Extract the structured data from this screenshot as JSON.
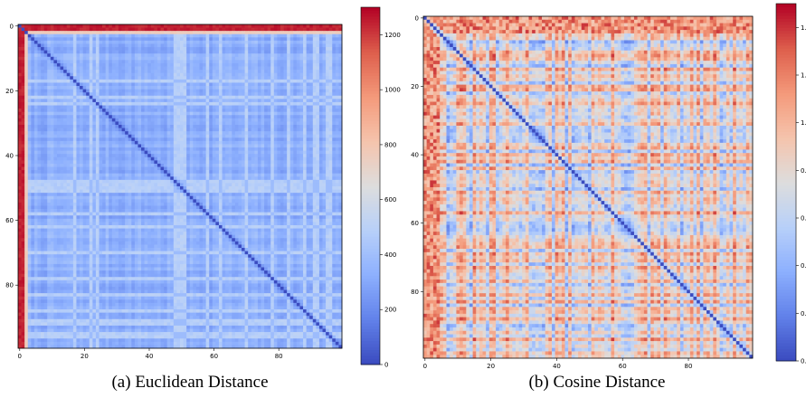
{
  "figure": {
    "panels": [
      {
        "caption": "(a) Euclidean Distance"
      },
      {
        "caption": "(b) Cosine Distance"
      }
    ]
  },
  "chart_data": [
    {
      "type": "heatmap",
      "title": "",
      "caption": "(a) Euclidean Distance",
      "size": 100,
      "colormap": "coolwarm",
      "x_ticks": [
        "0",
        "20",
        "40",
        "60",
        "80"
      ],
      "y_ticks": [
        "0",
        "20",
        "40",
        "60",
        "80"
      ],
      "colorbar": {
        "vmin": 0,
        "vmax": 1300,
        "ticks": [
          "0",
          "200",
          "400",
          "600",
          "800",
          "1000",
          "1200"
        ]
      },
      "diagonal": 0,
      "high_rows": [
        0,
        1
      ],
      "high_rows_value": 1250,
      "mid_rows": [
        2
      ],
      "mid_rows_value": 760,
      "background_value": 330,
      "light_bands": [
        17,
        22,
        24,
        48,
        49,
        50,
        51,
        58,
        62,
        70,
        78,
        83,
        88,
        91,
        92,
        95,
        96
      ],
      "light_bands_value": 480
    },
    {
      "type": "heatmap",
      "title": "",
      "caption": "(b) Cosine Distance",
      "size": 100,
      "colormap": "coolwarm",
      "x_ticks": [
        "0",
        "20",
        "40",
        "60",
        "80"
      ],
      "y_ticks": [
        "0",
        "20",
        "40",
        "60",
        "80"
      ],
      "colorbar": {
        "vmin": 0,
        "vmax": 1.5,
        "ticks": [
          "0.0",
          "0.2",
          "0.4",
          "0.6",
          "0.8",
          "1.0",
          "1.2",
          "1.4"
        ]
      },
      "diagonal": 0,
      "value_range": [
        0.2,
        1.45
      ]
    }
  ]
}
